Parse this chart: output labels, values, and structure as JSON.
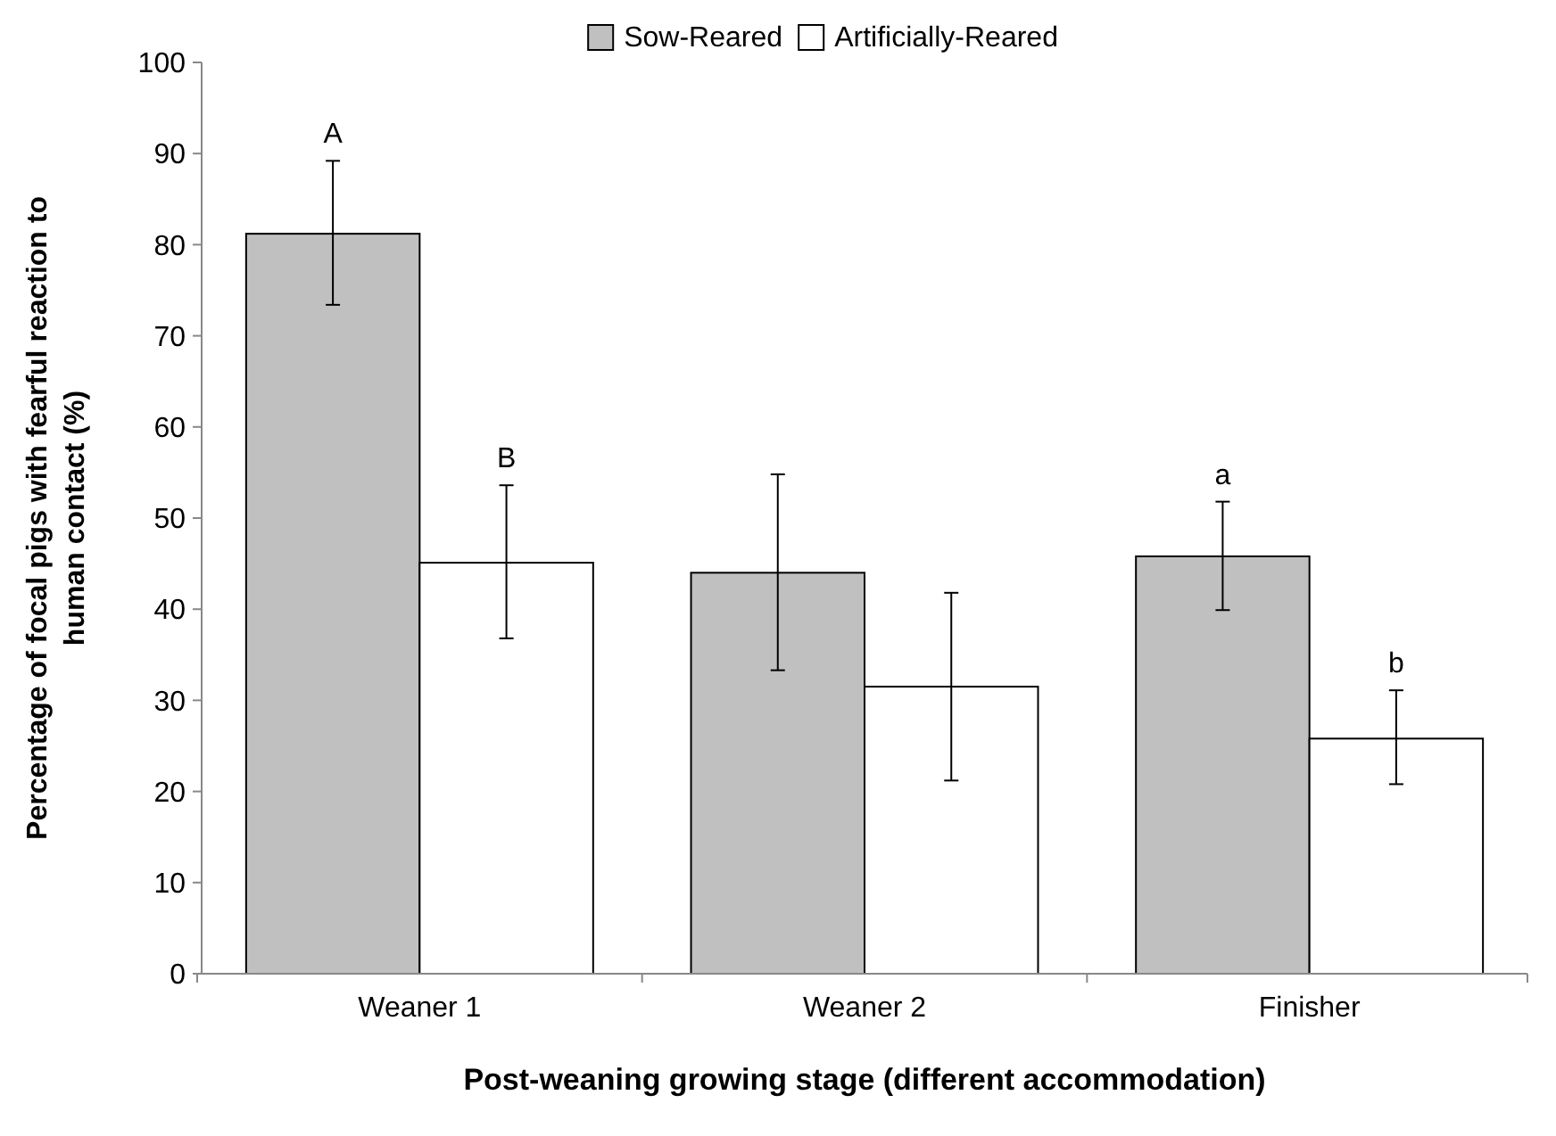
{
  "chart_data": {
    "type": "bar",
    "xlabel": "Post-weaning growing stage (different accommodation)",
    "ylabel": "Percentage of focal pigs with fearful reaction to human contact (%)",
    "categories": [
      "Weaner 1",
      "Weaner 2",
      "Finisher"
    ],
    "series": [
      {
        "name": "Sow-Reared",
        "color": "#c0c0c0",
        "values": [
          81.2,
          44.0,
          45.8
        ],
        "errors": [
          [
            73.4,
            89.2
          ],
          [
            33.3,
            54.8
          ],
          [
            39.9,
            51.8
          ]
        ],
        "value_labels": [
          "A",
          null,
          "a"
        ]
      },
      {
        "name": "Artificially-Reared",
        "color": "#ffffff",
        "values": [
          45.1,
          31.5,
          25.8
        ],
        "errors": [
          [
            36.8,
            53.6
          ],
          [
            21.2,
            41.8
          ],
          [
            20.8,
            31.1
          ]
        ],
        "value_labels": [
          "B",
          null,
          "b"
        ]
      }
    ],
    "ylim": [
      0,
      100
    ],
    "yticks": [
      0,
      10,
      20,
      30,
      40,
      50,
      60,
      70,
      80,
      90,
      100
    ],
    "grid": false,
    "legend": "top"
  }
}
